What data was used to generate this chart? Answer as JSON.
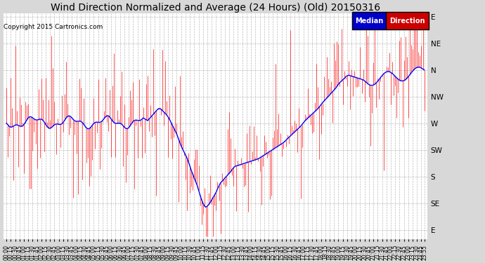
{
  "title": "Wind Direction Normalized and Average (24 Hours) (Old) 20150316",
  "copyright": "Copyright 2015 Cartronics.com",
  "legend_median_label": "Median",
  "legend_direction_label": "Direction",
  "legend_median_color": "#0000cc",
  "legend_direction_color": "#cc0000",
  "bg_color": "#d8d8d8",
  "plot_bg_color": "#ffffff",
  "y_labels": [
    "E",
    "NE",
    "N",
    "NW",
    "W",
    "SW",
    "S",
    "SE",
    "E"
  ],
  "y_values": [
    0,
    45,
    90,
    135,
    180,
    225,
    270,
    315,
    360
  ],
  "ylim": [
    -5,
    375
  ],
  "grid_color": "#aaaaaa",
  "red_line_color": "#ff0000",
  "blue_line_color": "#0000ff",
  "title_fontsize": 10,
  "copyright_fontsize": 6.5,
  "tick_fontsize": 5.5,
  "ylabel_fontsize": 7.5
}
